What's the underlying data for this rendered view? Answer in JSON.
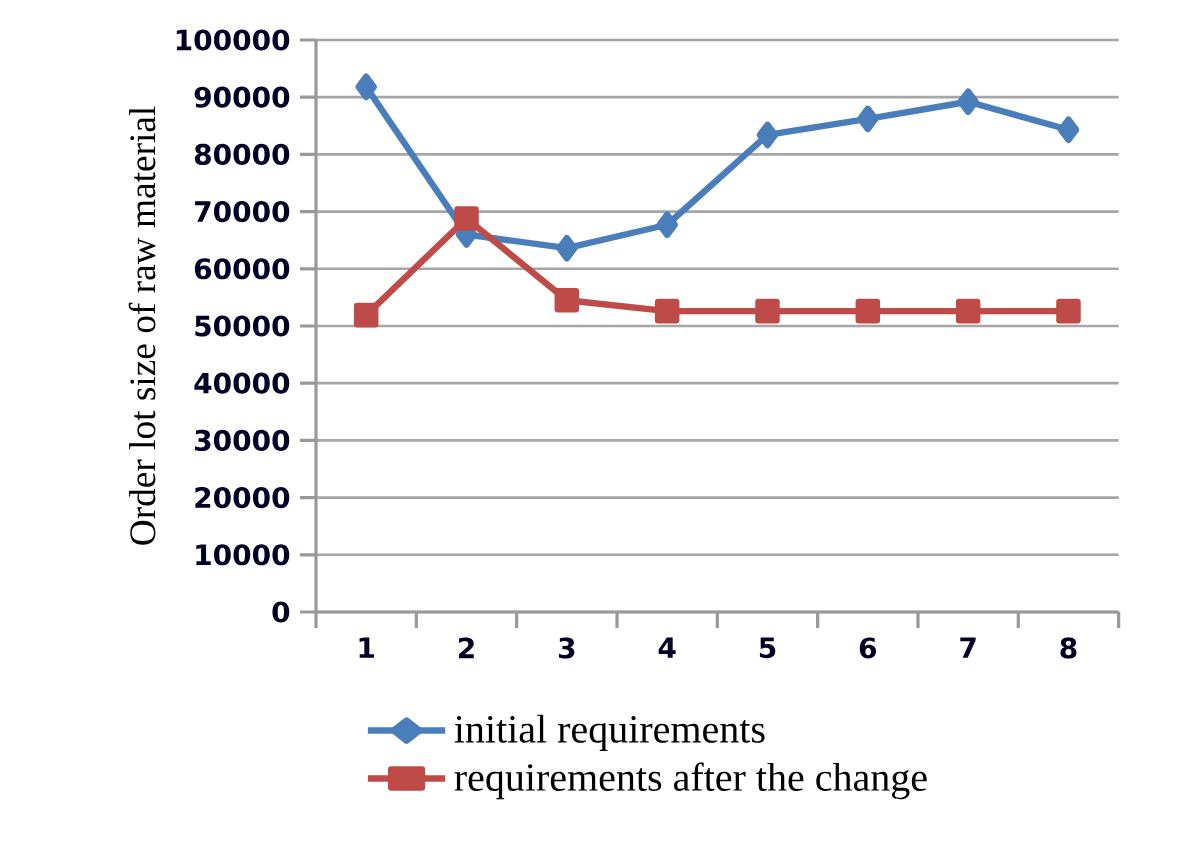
{
  "chart_data": {
    "type": "line",
    "ylabel": "Order lot size of raw material",
    "categories": [
      "1",
      "2",
      "3",
      "4",
      "5",
      "6",
      "7",
      "8"
    ],
    "series": [
      {
        "name": "initial requirements",
        "color": "#4a7ebb",
        "marker": "diamond",
        "values": [
          91800,
          66000,
          63600,
          67700,
          83400,
          86200,
          89200,
          84300
        ]
      },
      {
        "name": "requirements after the change",
        "color": "#be4b48",
        "marker": "square",
        "values": [
          51900,
          68800,
          54500,
          52600,
          52600,
          52600,
          52600,
          52600
        ]
      }
    ],
    "ylim": [
      0,
      100000
    ],
    "yticks": [
      0,
      10000,
      20000,
      30000,
      40000,
      50000,
      60000,
      70000,
      80000,
      90000,
      100000
    ],
    "grid": "y",
    "legend": "bottom",
    "line_style": "solid"
  }
}
